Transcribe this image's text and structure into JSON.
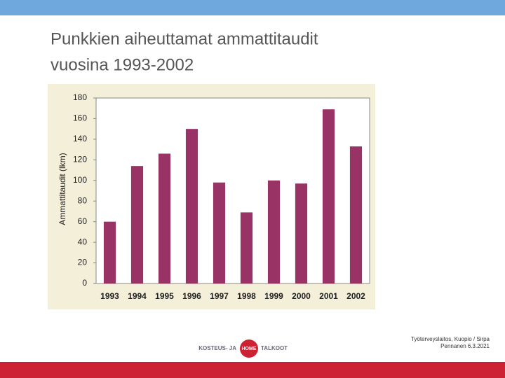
{
  "header": {
    "title_lines": [
      "Punkkien aiheuttamat ammattitaudit",
      "vuosina 1993-2002"
    ]
  },
  "chart_data": {
    "type": "bar",
    "ylabel": "Ammattitaudit (lkm)",
    "categories": [
      "1993",
      "1994",
      "1995",
      "1996",
      "1997",
      "1998",
      "1999",
      "2000",
      "2001",
      "2002"
    ],
    "values": [
      60,
      114,
      126,
      150,
      98,
      69,
      100,
      97,
      169,
      133
    ],
    "color": "#993366",
    "ylim": [
      0,
      180
    ],
    "yticks": [
      0,
      20,
      40,
      60,
      80,
      100,
      120,
      140,
      160,
      180
    ],
    "grid": false
  },
  "footer": {
    "credit_lines": [
      "Työterveyslaitos, Kuopio / Sirpa",
      "Pennanen 6.3.2021"
    ],
    "logo": [
      "KOSTEUS- JA",
      "HOME",
      "TALKOOT"
    ]
  }
}
